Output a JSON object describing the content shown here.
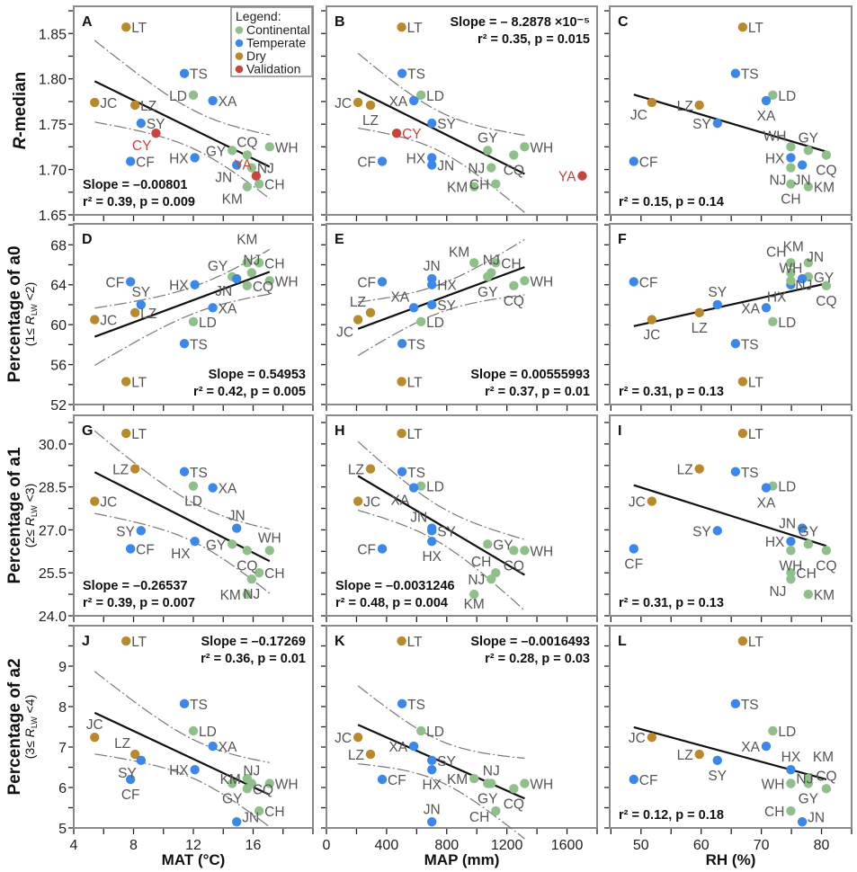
{
  "chart_data": {
    "type": "scatter",
    "groups": {
      "continental": {
        "label": "Continental",
        "color": "#8fc089"
      },
      "temperate": {
        "label": "Temperate",
        "color": "#3b87ea"
      },
      "dry": {
        "label": "Dry",
        "color": "#b98a2c"
      },
      "validation": {
        "label": "Validation",
        "color": "#c8453e"
      }
    },
    "legend": {
      "title": "Legend:",
      "position": "top-right of panel A",
      "order": [
        "continental",
        "temperate",
        "dry",
        "validation"
      ]
    },
    "x_axes": [
      {
        "var": "MAT",
        "title": "MAT (°C)",
        "min": 4,
        "max": 20,
        "tick_start": 4,
        "tick_step": 2,
        "tick_labels": [
          "4",
          "8",
          "12",
          "16"
        ]
      },
      {
        "var": "MAP",
        "title": "MAP (mm)",
        "min": 0,
        "max": 1800,
        "tick_start": 0,
        "tick_step": 200,
        "tick_labels": [
          "0",
          "400",
          "800",
          "1200",
          "1600"
        ]
      },
      {
        "var": "RH",
        "title": "RH (%)",
        "min": 44.8,
        "max": 85,
        "tick_start": 45,
        "tick_step": 5,
        "tick_labels": [
          "50",
          "60",
          "70",
          "80"
        ]
      }
    ],
    "y_axes": [
      {
        "var": "R_median",
        "title_var": "R",
        "title_rest": "-median",
        "sub_pre": "",
        "sub_var": "",
        "sub_sub": "",
        "sub_post": "",
        "min": 1.65,
        "max": 1.88,
        "tick_start": 1.65,
        "tick_step": 0.025,
        "tick_labels": [
          "1.65",
          "1.70",
          "1.75",
          "1.80",
          "1.85"
        ]
      },
      {
        "var": "a0",
        "title_var": "",
        "title_rest": "Percentage of a0",
        "sub_pre": "(1≤ ",
        "sub_var": "R",
        "sub_sub": "LW",
        "sub_post": " <2)",
        "min": 52,
        "max": 70.1,
        "tick_start": 52,
        "tick_step": 2,
        "tick_labels": [
          "52",
          "56",
          "60",
          "64",
          "68"
        ]
      },
      {
        "var": "a1",
        "title_var": "",
        "title_rest": "Percentage of a1",
        "sub_pre": "(2≤ ",
        "sub_var": "R",
        "sub_sub": "LW",
        "sub_post": " <3)",
        "min": 24,
        "max": 31,
        "tick_start": 24,
        "tick_step": 0.75,
        "tick_labels": [
          "24.0",
          "25.5",
          "27.0",
          "28.5",
          "30.0"
        ]
      },
      {
        "var": "a2",
        "title_var": "",
        "title_rest": "Percentage of a2",
        "sub_pre": "(3≤ ",
        "sub_var": "R",
        "sub_sub": "LW",
        "sub_post": " <4)",
        "min": 5,
        "max": 10,
        "tick_start": 5,
        "tick_step": 0.5,
        "tick_labels": [
          "5",
          "6",
          "7",
          "8",
          "9"
        ]
      }
    ],
    "sites": [
      {
        "code": "LT",
        "group": "dry",
        "MAT": 7.5,
        "MAP": 500,
        "RH": 66.9,
        "R_median": 1.857,
        "a0": 54.3,
        "a1": 30.37,
        "a2": 9.62
      },
      {
        "code": "TS",
        "group": "temperate",
        "MAT": 11.4,
        "MAP": 503,
        "RH": 65.7,
        "R_median": 1.806,
        "a0": 58.1,
        "a1": 29.03,
        "a2": 8.07
      },
      {
        "code": "LD",
        "group": "continental",
        "MAT": 12.0,
        "MAP": 629,
        "RH": 71.9,
        "R_median": 1.782,
        "a0": 60.3,
        "a1": 28.53,
        "a2": 7.4
      },
      {
        "code": "XA",
        "group": "temperate",
        "MAT": 13.3,
        "MAP": 581,
        "RH": 70.8,
        "R_median": 1.776,
        "a0": 61.7,
        "a1": 28.47,
        "a2": 7.02
      },
      {
        "code": "JC",
        "group": "dry",
        "MAT": 5.4,
        "MAP": 210,
        "RH": 51.8,
        "R_median": 1.774,
        "a0": 60.5,
        "a1": 28.0,
        "a2": 7.24
      },
      {
        "code": "LZ",
        "group": "dry",
        "MAT": 8.1,
        "MAP": 293,
        "RH": 59.7,
        "R_median": 1.771,
        "a0": 61.2,
        "a1": 29.13,
        "a2": 6.82
      },
      {
        "code": "SY",
        "group": "temperate",
        "MAT": 8.5,
        "MAP": 701,
        "RH": 62.7,
        "R_median": 1.751,
        "a0": 62.0,
        "a1": 26.97,
        "a2": 6.67
      },
      {
        "code": "CF",
        "group": "temperate",
        "MAT": 7.8,
        "MAP": 371,
        "RH": 48.8,
        "R_median": 1.709,
        "a0": 64.3,
        "a1": 26.34,
        "a2": 6.2
      },
      {
        "code": "HX",
        "group": "temperate",
        "MAT": 12.1,
        "MAP": 701,
        "RH": 74.9,
        "R_median": 1.713,
        "a0": 64.0,
        "a1": 26.6,
        "a2": 6.44
      },
      {
        "code": "GY",
        "group": "continental",
        "MAT": 14.6,
        "MAP": 1072,
        "RH": 77.8,
        "R_median": 1.721,
        "a0": 64.8,
        "a1": 26.5,
        "a2": 6.1
      },
      {
        "code": "CQ",
        "group": "continental",
        "MAT": 15.6,
        "MAP": 1246,
        "RH": 80.8,
        "R_median": 1.716,
        "a0": 63.9,
        "a1": 26.28,
        "a2": 5.97
      },
      {
        "code": "WH",
        "group": "continental",
        "MAT": 17.1,
        "MAP": 1318,
        "RH": 74.9,
        "R_median": 1.725,
        "a0": 64.4,
        "a1": 26.28,
        "a2": 6.1
      },
      {
        "code": "NJ",
        "group": "continental",
        "MAT": 15.9,
        "MAP": 1096,
        "RH": 74.9,
        "R_median": 1.702,
        "a0": 65.2,
        "a1": 25.28,
        "a2": 6.1
      },
      {
        "code": "JN",
        "group": "temperate",
        "MAT": 14.9,
        "MAP": 701,
        "RH": 76.8,
        "R_median": 1.705,
        "a0": 64.6,
        "a1": 27.06,
        "a2": 5.15
      },
      {
        "code": "KM",
        "group": "continental",
        "MAT": 15.6,
        "MAP": 982,
        "RH": 77.8,
        "R_median": 1.681,
        "a0": 66.2,
        "a1": 24.75,
        "a2": 6.22
      },
      {
        "code": "CH",
        "group": "continental",
        "MAT": 16.4,
        "MAP": 1126,
        "RH": 74.9,
        "R_median": 1.684,
        "a0": 66.2,
        "a1": 25.5,
        "a2": 5.42
      },
      {
        "code": "CY",
        "group": "validation",
        "MAT": 9.5,
        "MAP": 467,
        "RH": null,
        "R_median": 1.74,
        "a0": null,
        "a1": null,
        "a2": null
      },
      {
        "code": "YA",
        "group": "validation",
        "MAT": 16.2,
        "MAP": 1701,
        "RH": null,
        "R_median": 1.693,
        "a0": null,
        "a1": null,
        "a2": null
      }
    ],
    "panels": [
      {
        "letter": "A",
        "x_var": "MAT",
        "y_var": "R_median",
        "slope": "Slope = –0.00801",
        "stats": "r² = 0.39, p = 0.009",
        "confidence_band": true
      },
      {
        "letter": "B",
        "x_var": "MAP",
        "y_var": "R_median",
        "slope": "Slope = – 8.2878 ×10⁻⁵",
        "stats": "r² = 0.35, p = 0.015",
        "confidence_band": true
      },
      {
        "letter": "C",
        "x_var": "RH",
        "y_var": "R_median",
        "slope": "",
        "stats": "r² = 0.15, p = 0.14",
        "confidence_band": false
      },
      {
        "letter": "D",
        "x_var": "MAT",
        "y_var": "a0",
        "slope": "Slope = 0.54953",
        "stats": "r² = 0.42, p = 0.005",
        "confidence_band": true
      },
      {
        "letter": "E",
        "x_var": "MAP",
        "y_var": "a0",
        "slope": "Slope = 0.00555993",
        "stats": "r² = 0.37, p = 0.01",
        "confidence_band": true
      },
      {
        "letter": "F",
        "x_var": "RH",
        "y_var": "a0",
        "slope": "",
        "stats": "r² = 0.31, p = 0.13",
        "confidence_band": false
      },
      {
        "letter": "G",
        "x_var": "MAT",
        "y_var": "a1",
        "slope": "Slope = –0.26537",
        "stats": "r² = 0.39, p = 0.007",
        "confidence_band": true
      },
      {
        "letter": "H",
        "x_var": "MAP",
        "y_var": "a1",
        "slope": "Slope = –0.0031246",
        "stats": "r² = 0.48, p = 0.004",
        "confidence_band": true
      },
      {
        "letter": "I",
        "x_var": "RH",
        "y_var": "a1",
        "slope": "",
        "stats": "r² = 0.31, p = 0.13",
        "confidence_band": false
      },
      {
        "letter": "J",
        "x_var": "MAT",
        "y_var": "a2",
        "slope": "Slope = –0.17269",
        "stats": "r² = 0.36, p = 0.01",
        "confidence_band": true
      },
      {
        "letter": "K",
        "x_var": "MAP",
        "y_var": "a2",
        "slope": "Slope = –0.0016493",
        "stats": "r² = 0.28, p = 0.03",
        "confidence_band": true
      },
      {
        "letter": "L",
        "x_var": "RH",
        "y_var": "a2",
        "slope": "",
        "stats": "r² = 0.12, p = 0.18",
        "confidence_band": false
      }
    ]
  }
}
